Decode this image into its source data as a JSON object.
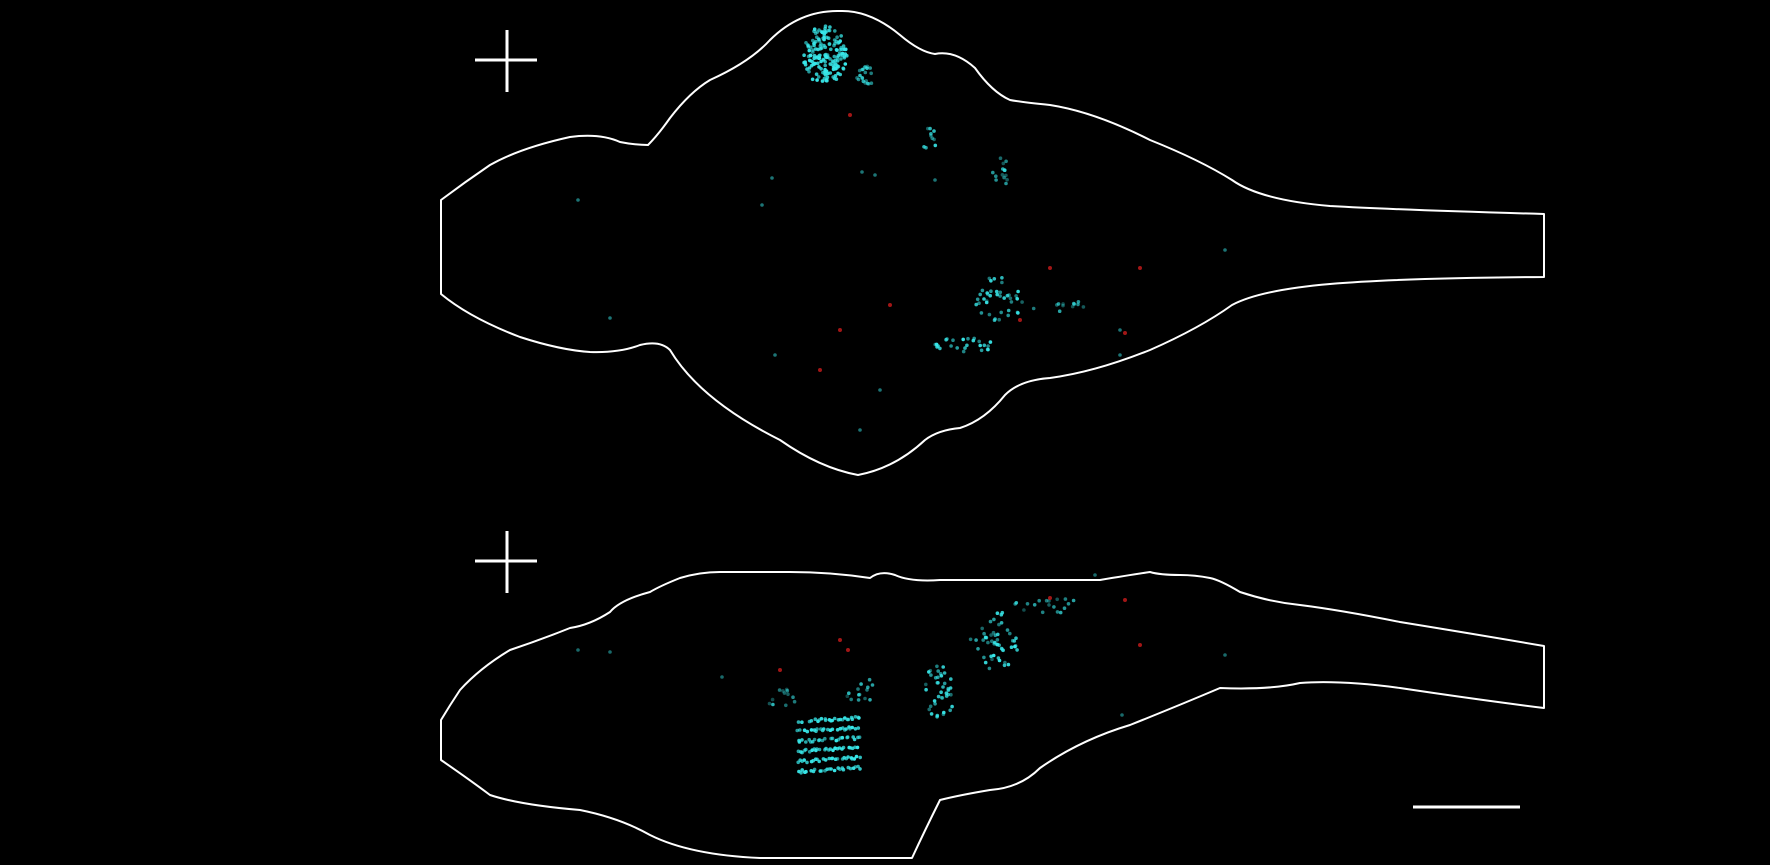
{
  "figure": {
    "background": "#000000",
    "line_color": "#ffffff",
    "colors": {
      "primary_cells": "#38e8ea",
      "secondary_cells": "#d81e1e"
    },
    "views": [
      {
        "id": "top-view",
        "icon": "crosshair-icon"
      },
      {
        "id": "side-view",
        "icon": "crosshair-icon"
      }
    ],
    "scale_bar": {
      "visible": true
    }
  }
}
